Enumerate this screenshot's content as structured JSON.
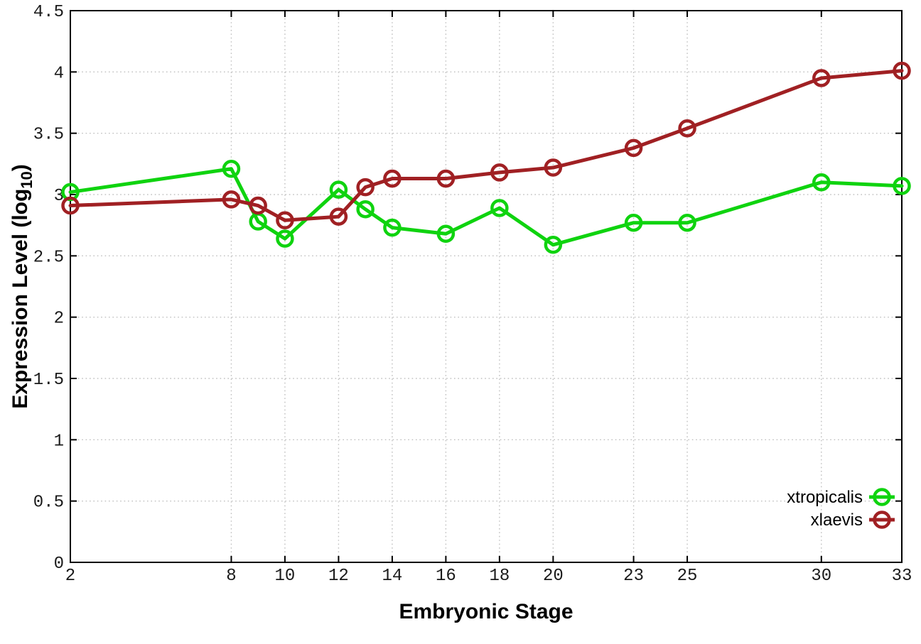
{
  "chart_data": {
    "type": "line",
    "title": "",
    "xlabel": "Embryonic Stage",
    "ylabel_prefix": "Expression Level (log",
    "ylabel_subscript": "10",
    "ylabel_suffix": ")",
    "xlim": [
      2,
      33
    ],
    "ylim": [
      0,
      4.5
    ],
    "grid": true,
    "legend_position": "bottom-right",
    "x": [
      2,
      8,
      9,
      10,
      12,
      13,
      14,
      16,
      18,
      20,
      23,
      25,
      30,
      33
    ],
    "x_tick_values": [
      2,
      8,
      10,
      12,
      14,
      16,
      18,
      20,
      23,
      25,
      30,
      33
    ],
    "x_tick_labels": [
      "2",
      "8",
      "10",
      "12",
      "14",
      "16",
      "18",
      "20",
      "23",
      "25",
      "30",
      "33"
    ],
    "y_tick_values": [
      0,
      0.5,
      1,
      1.5,
      2,
      2.5,
      3,
      3.5,
      4,
      4.5
    ],
    "y_tick_labels": [
      "0",
      "0.5",
      "1",
      "1.5",
      "2",
      "2.5",
      "3",
      "3.5",
      "4",
      "4.5"
    ],
    "series": [
      {
        "name": "xtropicalis",
        "color": "#0fd30f",
        "values": [
          3.02,
          3.21,
          2.78,
          2.64,
          3.04,
          2.88,
          2.73,
          2.68,
          2.89,
          2.59,
          2.77,
          2.77,
          3.1,
          3.07
        ]
      },
      {
        "name": "xlaevis",
        "color": "#a02023",
        "values": [
          2.91,
          2.96,
          2.91,
          2.79,
          2.82,
          3.06,
          3.13,
          3.13,
          3.18,
          3.22,
          3.38,
          3.54,
          3.95,
          4.01
        ]
      }
    ],
    "colors": {
      "grid": "#c0c0c0",
      "axis": "#000000",
      "text": "#000000",
      "background": "#ffffff"
    }
  }
}
